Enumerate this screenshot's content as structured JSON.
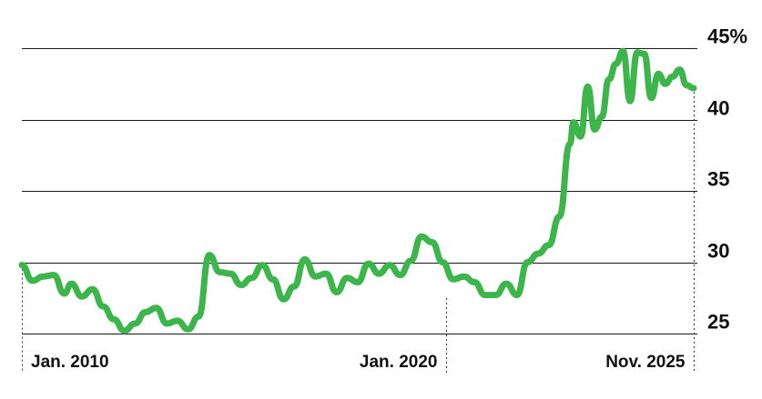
{
  "chart_data": {
    "type": "line",
    "title": "",
    "xlabel": "",
    "ylabel": "",
    "ylim": [
      25,
      45
    ],
    "y_ticks": [
      {
        "value": 45,
        "label": "45%"
      },
      {
        "value": 40,
        "label": "40"
      },
      {
        "value": 35,
        "label": "35"
      },
      {
        "value": 30,
        "label": "30"
      },
      {
        "value": 25,
        "label": "25"
      }
    ],
    "x_ticks": [
      {
        "date": "2010-01",
        "label": "Jan. 2010"
      },
      {
        "date": "2020-01",
        "label": "Jan. 2020"
      },
      {
        "date": "2025-11",
        "label": "Nov. 2025"
      }
    ],
    "grid": true,
    "colors": {
      "series": "#3cb54a",
      "grid": "#1a1a1a",
      "text": "#111111"
    },
    "series": [
      {
        "values": [
          [
            "2010-01",
            29.8
          ],
          [
            "2010-04",
            28.7
          ],
          [
            "2010-07",
            29.0
          ],
          [
            "2010-10",
            29.1
          ],
          [
            "2011-01",
            27.8
          ],
          [
            "2011-03",
            28.5
          ],
          [
            "2011-06",
            27.6
          ],
          [
            "2011-09",
            28.1
          ],
          [
            "2011-12",
            26.9
          ],
          [
            "2012-03",
            26.0
          ],
          [
            "2012-06",
            25.2
          ],
          [
            "2012-09",
            25.7
          ],
          [
            "2012-12",
            26.5
          ],
          [
            "2013-03",
            26.8
          ],
          [
            "2013-06",
            25.7
          ],
          [
            "2013-09",
            25.9
          ],
          [
            "2013-12",
            25.3
          ],
          [
            "2014-03",
            26.2
          ],
          [
            "2014-06",
            30.5
          ],
          [
            "2014-09",
            29.3
          ],
          [
            "2014-12",
            29.2
          ],
          [
            "2015-03",
            28.4
          ],
          [
            "2015-06",
            28.9
          ],
          [
            "2015-09",
            29.8
          ],
          [
            "2015-12",
            28.8
          ],
          [
            "2016-03",
            27.4
          ],
          [
            "2016-06",
            28.3
          ],
          [
            "2016-09",
            30.2
          ],
          [
            "2016-12",
            29.0
          ],
          [
            "2017-03",
            29.2
          ],
          [
            "2017-06",
            27.9
          ],
          [
            "2017-09",
            28.9
          ],
          [
            "2017-12",
            28.6
          ],
          [
            "2018-03",
            29.9
          ],
          [
            "2018-06",
            29.2
          ],
          [
            "2018-09",
            29.8
          ],
          [
            "2018-12",
            29.1
          ],
          [
            "2019-03",
            30.1
          ],
          [
            "2019-06",
            31.8
          ],
          [
            "2019-09",
            31.4
          ],
          [
            "2019-12",
            30.0
          ],
          [
            "2020-03",
            28.8
          ],
          [
            "2020-06",
            29.0
          ],
          [
            "2020-09",
            28.6
          ],
          [
            "2020-12",
            27.7
          ],
          [
            "2021-03",
            27.7
          ],
          [
            "2021-06",
            28.5
          ],
          [
            "2021-09",
            27.7
          ],
          [
            "2021-12",
            30.0
          ],
          [
            "2022-03",
            30.6
          ],
          [
            "2022-06",
            31.2
          ],
          [
            "2022-09",
            33.2
          ],
          [
            "2022-12",
            38.3
          ],
          [
            "2023-01",
            39.8
          ],
          [
            "2023-03",
            38.8
          ],
          [
            "2023-05",
            42.3
          ],
          [
            "2023-07",
            39.3
          ],
          [
            "2023-09",
            40.2
          ],
          [
            "2023-11",
            42.8
          ],
          [
            "2024-01",
            43.9
          ],
          [
            "2024-03",
            44.8
          ],
          [
            "2024-05",
            41.3
          ],
          [
            "2024-07",
            44.7
          ],
          [
            "2024-09",
            44.6
          ],
          [
            "2024-11",
            41.5
          ],
          [
            "2025-01",
            43.2
          ],
          [
            "2025-03",
            42.5
          ],
          [
            "2025-05",
            43.0
          ],
          [
            "2025-07",
            43.5
          ],
          [
            "2025-09",
            42.4
          ],
          [
            "2025-11",
            42.2
          ]
        ]
      }
    ]
  }
}
